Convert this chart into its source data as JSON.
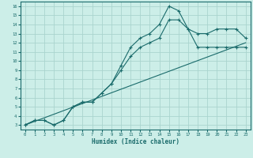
{
  "title": "",
  "xlabel": "Humidex (Indice chaleur)",
  "ylabel": "",
  "bg_color": "#cceee8",
  "grid_color": "#aad4ce",
  "line_color": "#1a6b6b",
  "xlim": [
    -0.5,
    23.5
  ],
  "ylim": [
    2.5,
    16.5
  ],
  "xticks": [
    0,
    1,
    2,
    3,
    4,
    5,
    6,
    7,
    8,
    9,
    10,
    11,
    12,
    13,
    14,
    15,
    16,
    17,
    18,
    19,
    20,
    21,
    22,
    23
  ],
  "yticks": [
    3,
    4,
    5,
    6,
    7,
    8,
    9,
    10,
    11,
    12,
    13,
    14,
    15,
    16
  ],
  "line1_x": [
    0,
    1,
    2,
    3,
    4,
    5,
    6,
    7,
    8,
    9,
    10,
    11,
    12,
    13,
    14,
    15,
    16,
    17,
    18,
    19,
    20,
    21,
    22,
    23
  ],
  "line1_y": [
    3,
    3.5,
    3.5,
    3.0,
    3.5,
    5.0,
    5.5,
    5.5,
    6.5,
    7.5,
    9.5,
    11.5,
    12.5,
    13.0,
    14.0,
    16.0,
    15.5,
    13.5,
    13.0,
    13.0,
    13.5,
    13.5,
    13.5,
    12.5
  ],
  "line2_x": [
    0,
    1,
    2,
    3,
    4,
    5,
    6,
    7,
    8,
    9,
    10,
    11,
    12,
    13,
    14,
    15,
    16,
    17,
    18,
    19,
    20,
    21,
    22,
    23
  ],
  "line2_y": [
    3,
    3.5,
    3.5,
    3.0,
    3.5,
    5.0,
    5.5,
    5.5,
    6.5,
    7.5,
    9.0,
    10.5,
    11.5,
    12.0,
    12.5,
    14.5,
    14.5,
    13.5,
    11.5,
    11.5,
    11.5,
    11.5,
    11.5,
    11.5
  ],
  "line3_x": [
    0,
    23
  ],
  "line3_y": [
    3.0,
    12.0
  ]
}
